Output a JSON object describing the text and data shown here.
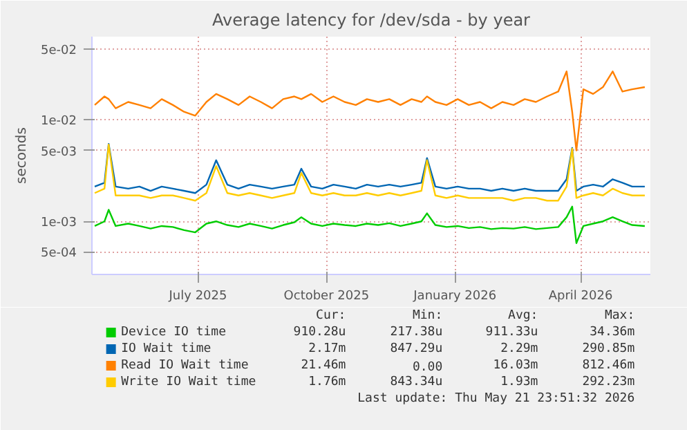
{
  "chart_data": {
    "type": "line",
    "title": "Average latency for /dev/sda - by year",
    "ylabel": "seconds",
    "log": "y",
    "grid": true,
    "legend": "bottom",
    "marker": "none",
    "line_style": "solid",
    "x": [
      "2025-04-18",
      "2025-04-25",
      "2025-04-28",
      "2025-05-03",
      "2025-05-12",
      "2025-05-20",
      "2025-05-28",
      "2025-06-05",
      "2025-06-13",
      "2025-06-21",
      "2025-06-29",
      "2025-07-07",
      "2025-07-14",
      "2025-07-22",
      "2025-07-30",
      "2025-08-07",
      "2025-08-15",
      "2025-08-23",
      "2025-08-31",
      "2025-09-08",
      "2025-09-13",
      "2025-09-20",
      "2025-09-28",
      "2025-10-06",
      "2025-10-14",
      "2025-10-22",
      "2025-10-30",
      "2025-11-07",
      "2025-11-15",
      "2025-11-23",
      "2025-12-01",
      "2025-12-08",
      "2025-12-12",
      "2025-12-18",
      "2025-12-26",
      "2026-01-03",
      "2026-01-11",
      "2026-01-19",
      "2026-01-27",
      "2026-02-04",
      "2026-02-12",
      "2026-02-20",
      "2026-02-28",
      "2026-03-08",
      "2026-03-16",
      "2026-03-22",
      "2026-03-26",
      "2026-03-29",
      "2026-04-03",
      "2026-04-10",
      "2026-04-17",
      "2026-04-24",
      "2026-05-01",
      "2026-05-08",
      "2026-05-17"
    ],
    "xlim": [
      "2025-04-16",
      "2026-05-21"
    ],
    "xticks": [
      {
        "value": "2025-07-01",
        "label": "July 2025"
      },
      {
        "value": "2025-10-01",
        "label": "October 2025"
      },
      {
        "value": "2026-01-01",
        "label": "January 2026"
      },
      {
        "value": "2026-04-01",
        "label": "April 2026"
      }
    ],
    "ylim": [
      0.0003,
      0.066
    ],
    "yticks": [
      {
        "value": 0.0005,
        "label": "5e-04"
      },
      {
        "value": 0.001,
        "label": "1e-03"
      },
      {
        "value": 0.005,
        "label": "5e-03"
      },
      {
        "value": 0.01,
        "label": "1e-02"
      },
      {
        "value": 0.05,
        "label": "5e-02"
      }
    ],
    "series": [
      {
        "name": "Device IO time",
        "color": "#00cc00",
        "values": [
          0.0009,
          0.001,
          0.0013,
          0.0009,
          0.00095,
          0.0009,
          0.00085,
          0.0009,
          0.00088,
          0.00082,
          0.00078,
          0.00095,
          0.001,
          0.00092,
          0.00088,
          0.00095,
          0.0009,
          0.00085,
          0.00092,
          0.00098,
          0.0011,
          0.00095,
          0.0009,
          0.00095,
          0.00092,
          0.0009,
          0.00095,
          0.00092,
          0.00096,
          0.0009,
          0.00095,
          0.001,
          0.0012,
          0.00092,
          0.00088,
          0.0009,
          0.00086,
          0.00088,
          0.00084,
          0.00086,
          0.00085,
          0.00088,
          0.00084,
          0.00086,
          0.00088,
          0.0011,
          0.0014,
          0.00061,
          0.0009,
          0.00095,
          0.001,
          0.0011,
          0.001,
          0.00092,
          0.0009
        ]
      },
      {
        "name": "IO Wait time",
        "color": "#0066b3",
        "values": [
          0.0022,
          0.0024,
          0.0058,
          0.0022,
          0.0021,
          0.0022,
          0.002,
          0.0022,
          0.0021,
          0.002,
          0.0019,
          0.0023,
          0.004,
          0.0023,
          0.0021,
          0.0023,
          0.0022,
          0.0021,
          0.0022,
          0.0023,
          0.0033,
          0.0022,
          0.0021,
          0.0023,
          0.0022,
          0.0021,
          0.0023,
          0.0022,
          0.0023,
          0.0022,
          0.0023,
          0.0024,
          0.0042,
          0.0022,
          0.0021,
          0.0022,
          0.0021,
          0.0021,
          0.002,
          0.0021,
          0.002,
          0.0021,
          0.002,
          0.002,
          0.002,
          0.0026,
          0.0053,
          0.002,
          0.0022,
          0.0023,
          0.0022,
          0.0026,
          0.0024,
          0.0022,
          0.0022
        ]
      },
      {
        "name": "Read IO Wait time",
        "color": "#ff8000",
        "values": [
          0.014,
          0.017,
          0.016,
          0.013,
          0.015,
          0.014,
          0.013,
          0.016,
          0.014,
          0.012,
          0.011,
          0.015,
          0.018,
          0.016,
          0.014,
          0.017,
          0.015,
          0.013,
          0.016,
          0.017,
          0.016,
          0.018,
          0.015,
          0.017,
          0.015,
          0.014,
          0.016,
          0.015,
          0.016,
          0.014,
          0.016,
          0.015,
          0.017,
          0.015,
          0.014,
          0.016,
          0.014,
          0.015,
          0.013,
          0.015,
          0.014,
          0.016,
          0.015,
          0.017,
          0.019,
          0.03,
          0.012,
          0.005,
          0.02,
          0.018,
          0.021,
          0.03,
          0.019,
          0.02,
          0.021
        ]
      },
      {
        "name": "Write IO Wait time",
        "color": "#ffcc00",
        "values": [
          0.0019,
          0.0021,
          0.0057,
          0.0018,
          0.0018,
          0.0018,
          0.0017,
          0.0018,
          0.0018,
          0.0017,
          0.0016,
          0.0019,
          0.0035,
          0.0019,
          0.0018,
          0.0019,
          0.0018,
          0.0017,
          0.0018,
          0.0019,
          0.003,
          0.0019,
          0.0018,
          0.0019,
          0.0018,
          0.0018,
          0.0019,
          0.0018,
          0.0019,
          0.0018,
          0.0019,
          0.002,
          0.004,
          0.0018,
          0.0017,
          0.0018,
          0.0017,
          0.0017,
          0.0017,
          0.0017,
          0.0016,
          0.0017,
          0.0017,
          0.0016,
          0.0016,
          0.0022,
          0.0052,
          0.0017,
          0.0018,
          0.0019,
          0.0018,
          0.0021,
          0.0019,
          0.0018,
          0.0018
        ]
      }
    ],
    "annotations": [
      "Cur:",
      "Min:",
      "Avg:",
      "Max:",
      "910.28u",
      "217.38u",
      "911.33u",
      "34.36m",
      "2.17m",
      "847.29u",
      "2.29m",
      "290.85m",
      "21.46m",
      "0.00",
      "16.03m",
      "812.46m",
      "1.76m",
      "843.34u",
      "1.93m",
      "292.23m",
      "Last update: Thu May 21 23:51:32 2026"
    ]
  }
}
